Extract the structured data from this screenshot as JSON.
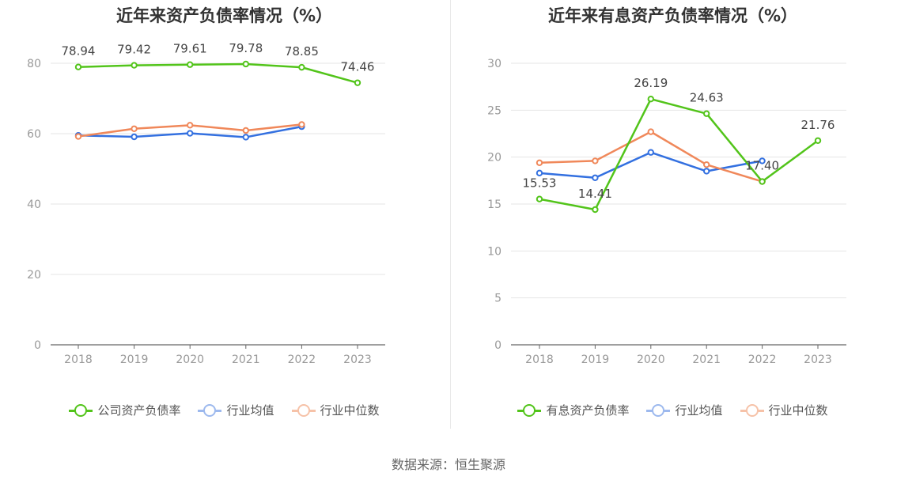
{
  "source": "数据来源：恒生聚源",
  "chart_data": [
    {
      "type": "line",
      "title": "近年来资产负债率情况（%）",
      "categories": [
        "2018",
        "2019",
        "2020",
        "2021",
        "2022",
        "2023"
      ],
      "ylim": [
        0,
        90
      ],
      "yticks": [
        0,
        20,
        40,
        60,
        80
      ],
      "grid": true,
      "legend_position": "bottom",
      "series": [
        {
          "name": "公司资产负债率",
          "color": "#52c41a",
          "values": [
            78.94,
            79.42,
            79.61,
            79.78,
            78.85,
            74.46
          ],
          "labels": [
            "78.94",
            "79.42",
            "79.61",
            "79.78",
            "78.85",
            "74.46"
          ]
        },
        {
          "name": "行业均值",
          "color": "#3370e0",
          "values": [
            59.5,
            59.1,
            60.1,
            59.0,
            62.0,
            null
          ],
          "labels": null
        },
        {
          "name": "行业中位数",
          "color": "#f0885a",
          "values": [
            59.2,
            61.4,
            62.4,
            60.9,
            62.6,
            null
          ],
          "labels": null
        }
      ]
    },
    {
      "type": "line",
      "title": "近年来有息资产负债率情况（%）",
      "categories": [
        "2018",
        "2019",
        "2020",
        "2021",
        "2022",
        "2023"
      ],
      "ylim": [
        0,
        30
      ],
      "yticks": [
        0,
        5,
        10,
        15,
        20,
        25,
        30
      ],
      "grid": true,
      "legend_position": "bottom",
      "series": [
        {
          "name": "有息资产负债率",
          "color": "#52c41a",
          "values": [
            15.53,
            14.41,
            26.19,
            24.63,
            17.4,
            21.76
          ],
          "labels": [
            "15.53",
            "14.41",
            "26.19",
            "24.63",
            "17.40",
            "21.76"
          ]
        },
        {
          "name": "行业均值",
          "color": "#3370e0",
          "values": [
            18.3,
            17.8,
            20.5,
            18.5,
            19.6,
            null
          ],
          "labels": null
        },
        {
          "name": "行业中位数",
          "color": "#f0885a",
          "values": [
            19.4,
            19.6,
            22.7,
            19.2,
            17.4,
            null
          ],
          "labels": null
        }
      ]
    }
  ]
}
